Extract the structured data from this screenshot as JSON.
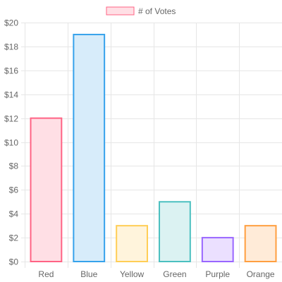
{
  "chart_data": {
    "type": "bar",
    "categories": [
      "Red",
      "Blue",
      "Yellow",
      "Green",
      "Purple",
      "Orange"
    ],
    "series": [
      {
        "name": "# of Votes",
        "values": [
          12,
          19,
          3,
          5,
          2,
          3
        ]
      }
    ],
    "ylim": [
      0,
      20
    ],
    "y_ticks": [
      0,
      2,
      4,
      6,
      8,
      10,
      12,
      14,
      16,
      18,
      20
    ],
    "y_tick_prefix": "$",
    "grid": true,
    "legend_position": "top",
    "colors": {
      "bar_fills": [
        "#ffdfe5",
        "#d7ecfa",
        "#fff4dc",
        "#dbf2f2",
        "#ebe0ff",
        "#ffebd8"
      ],
      "bar_borders": [
        "#ff6384",
        "#36a2eb",
        "#ffce56",
        "#4bc0c0",
        "#9966ff",
        "#ff9f40"
      ],
      "grid": "#e6e6e6",
      "tick_text": "#666666"
    }
  }
}
